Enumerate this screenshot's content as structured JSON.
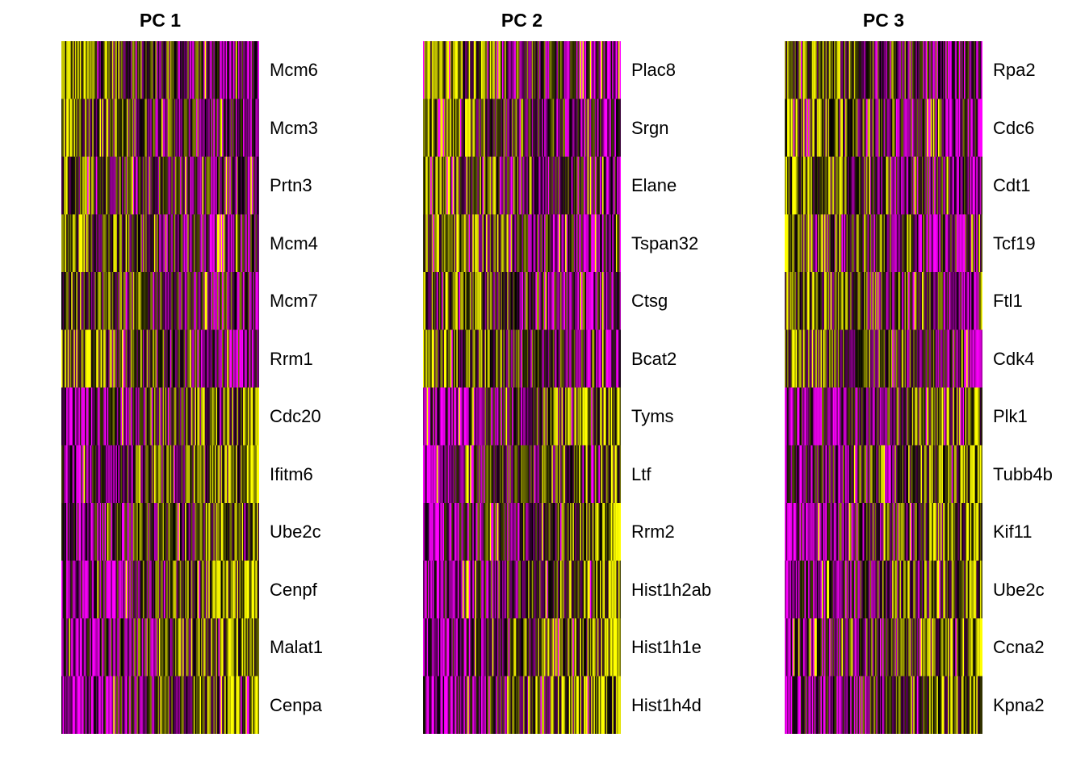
{
  "chart_data": {
    "type": "heatmap",
    "colors": {
      "low": "#ff00ff",
      "mid": "#000000",
      "high": "#ffff00"
    },
    "panels": [
      {
        "title": "PC 1",
        "genes": [
          "Mcm6",
          "Mcm3",
          "Prtn3",
          "Mcm4",
          "Mcm7",
          "Rrm1",
          "Cdc20",
          "Ifitm6",
          "Ube2c",
          "Cenpf",
          "Malat1",
          "Cenpa"
        ],
        "trend": [
          -0.5,
          -0.4,
          -0.3,
          -0.35,
          -0.3,
          -0.4,
          0.55,
          0.45,
          0.5,
          0.55,
          0.6,
          0.65
        ]
      },
      {
        "title": "PC 2",
        "genes": [
          "Plac8",
          "Srgn",
          "Elane",
          "Tspan32",
          "Ctsg",
          "Bcat2",
          "Tyms",
          "Ltf",
          "Rrm2",
          "Hist1h2ab",
          "Hist1h1e",
          "Hist1h4d"
        ],
        "trend": [
          -0.55,
          -0.45,
          -0.4,
          -0.45,
          -0.35,
          -0.45,
          0.5,
          0.45,
          0.5,
          0.55,
          0.55,
          0.6
        ]
      },
      {
        "title": "PC 3",
        "genes": [
          "Rpa2",
          "Cdc6",
          "Cdt1",
          "Tcf19",
          "Ftl1",
          "Cdk4",
          "Plk1",
          "Tubb4b",
          "Kif11",
          "Ube2c",
          "Ccna2",
          "Kpna2"
        ],
        "trend": [
          -0.45,
          -0.4,
          -0.4,
          -0.35,
          -0.3,
          -0.4,
          0.45,
          0.4,
          0.45,
          0.5,
          0.55,
          0.5
        ]
      }
    ]
  }
}
